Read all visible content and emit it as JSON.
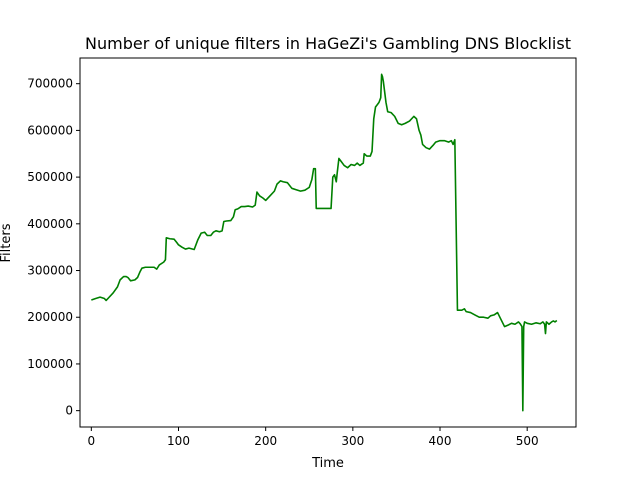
{
  "chart_data": {
    "type": "line",
    "title": "Number of unique filters in HaGeZi's Gambling DNS Blocklist",
    "xlabel": "Time",
    "ylabel": "Filters",
    "xlim": [
      -13,
      556
    ],
    "ylim": [
      -35000,
      755000
    ],
    "xticks": [
      0,
      100,
      200,
      300,
      400,
      500
    ],
    "yticks": [
      0,
      100000,
      200000,
      300000,
      400000,
      500000,
      600000,
      700000
    ],
    "grid": false,
    "legend": "none",
    "series": [
      {
        "color": "#008000",
        "points": [
          [
            0,
            237000
          ],
          [
            5,
            240000
          ],
          [
            10,
            243000
          ],
          [
            15,
            240000
          ],
          [
            17,
            236000
          ],
          [
            20,
            242000
          ],
          [
            25,
            252000
          ],
          [
            30,
            265000
          ],
          [
            33,
            280000
          ],
          [
            37,
            287000
          ],
          [
            40,
            287000
          ],
          [
            42,
            285000
          ],
          [
            45,
            278000
          ],
          [
            50,
            280000
          ],
          [
            53,
            285000
          ],
          [
            56,
            298000
          ],
          [
            58,
            305000
          ],
          [
            62,
            307000
          ],
          [
            68,
            307000
          ],
          [
            72,
            307000
          ],
          [
            75,
            303000
          ],
          [
            78,
            312000
          ],
          [
            83,
            318000
          ],
          [
            85,
            323000
          ],
          [
            86,
            370000
          ],
          [
            90,
            368000
          ],
          [
            95,
            367000
          ],
          [
            98,
            360000
          ],
          [
            100,
            355000
          ],
          [
            104,
            350000
          ],
          [
            108,
            346000
          ],
          [
            112,
            348000
          ],
          [
            118,
            345000
          ],
          [
            122,
            365000
          ],
          [
            126,
            380000
          ],
          [
            130,
            382000
          ],
          [
            133,
            375000
          ],
          [
            137,
            375000
          ],
          [
            140,
            382000
          ],
          [
            143,
            385000
          ],
          [
            147,
            383000
          ],
          [
            150,
            385000
          ],
          [
            152,
            405000
          ],
          [
            155,
            406000
          ],
          [
            160,
            407000
          ],
          [
            163,
            415000
          ],
          [
            165,
            430000
          ],
          [
            168,
            432000
          ],
          [
            172,
            437000
          ],
          [
            176,
            437000
          ],
          [
            180,
            438000
          ],
          [
            185,
            436000
          ],
          [
            188,
            440000
          ],
          [
            190,
            468000
          ],
          [
            193,
            460000
          ],
          [
            197,
            455000
          ],
          [
            200,
            450000
          ],
          [
            205,
            460000
          ],
          [
            210,
            470000
          ],
          [
            213,
            485000
          ],
          [
            217,
            492000
          ],
          [
            220,
            490000
          ],
          [
            225,
            488000
          ],
          [
            230,
            476000
          ],
          [
            235,
            473000
          ],
          [
            240,
            470000
          ],
          [
            245,
            472000
          ],
          [
            250,
            478000
          ],
          [
            253,
            495000
          ],
          [
            255,
            518000
          ],
          [
            257,
            518000
          ],
          [
            258,
            433000
          ],
          [
            262,
            433000
          ],
          [
            268,
            433000
          ],
          [
            272,
            433000
          ],
          [
            275,
            433000
          ],
          [
            277,
            500000
          ],
          [
            279,
            505000
          ],
          [
            281,
            490000
          ],
          [
            282,
            508000
          ],
          [
            284,
            540000
          ],
          [
            286,
            535000
          ],
          [
            290,
            525000
          ],
          [
            294,
            520000
          ],
          [
            298,
            527000
          ],
          [
            302,
            525000
          ],
          [
            305,
            530000
          ],
          [
            308,
            525000
          ],
          [
            312,
            530000
          ],
          [
            313,
            550000
          ],
          [
            316,
            545000
          ],
          [
            320,
            545000
          ],
          [
            322,
            555000
          ],
          [
            324,
            625000
          ],
          [
            326,
            650000
          ],
          [
            328,
            655000
          ],
          [
            330,
            660000
          ],
          [
            332,
            670000
          ],
          [
            333,
            720000
          ],
          [
            334,
            715000
          ],
          [
            335,
            705000
          ],
          [
            336,
            690000
          ],
          [
            338,
            660000
          ],
          [
            340,
            640000
          ],
          [
            344,
            638000
          ],
          [
            348,
            630000
          ],
          [
            352,
            615000
          ],
          [
            356,
            612000
          ],
          [
            360,
            615000
          ],
          [
            365,
            620000
          ],
          [
            370,
            630000
          ],
          [
            373,
            625000
          ],
          [
            376,
            600000
          ],
          [
            378,
            590000
          ],
          [
            380,
            570000
          ],
          [
            384,
            563000
          ],
          [
            388,
            560000
          ],
          [
            392,
            568000
          ],
          [
            395,
            575000
          ],
          [
            400,
            578000
          ],
          [
            405,
            578000
          ],
          [
            410,
            575000
          ],
          [
            413,
            578000
          ],
          [
            415,
            570000
          ],
          [
            417,
            580000
          ],
          [
            420,
            215000
          ],
          [
            425,
            215000
          ],
          [
            428,
            218000
          ],
          [
            430,
            212000
          ],
          [
            435,
            210000
          ],
          [
            440,
            205000
          ],
          [
            445,
            200000
          ],
          [
            450,
            200000
          ],
          [
            455,
            198000
          ],
          [
            458,
            203000
          ],
          [
            462,
            205000
          ],
          [
            466,
            210000
          ],
          [
            470,
            195000
          ],
          [
            474,
            180000
          ],
          [
            478,
            183000
          ],
          [
            482,
            187000
          ],
          [
            486,
            185000
          ],
          [
            490,
            190000
          ],
          [
            492,
            186000
          ],
          [
            494,
            180000
          ],
          [
            495,
            0
          ],
          [
            496,
            180000
          ],
          [
            497,
            190000
          ],
          [
            500,
            187000
          ],
          [
            505,
            185000
          ],
          [
            510,
            188000
          ],
          [
            515,
            186000
          ],
          [
            518,
            190000
          ],
          [
            520,
            185000
          ],
          [
            521,
            165000
          ],
          [
            522,
            190000
          ],
          [
            525,
            185000
          ],
          [
            528,
            190000
          ],
          [
            530,
            192000
          ],
          [
            532,
            190000
          ],
          [
            534,
            193000
          ]
        ]
      }
    ]
  }
}
